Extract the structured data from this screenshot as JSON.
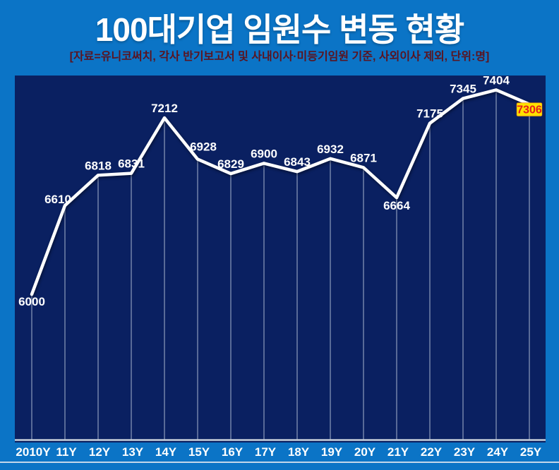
{
  "header": {
    "title": "100대기업 임원수 변동 현황",
    "subtitle": "[자료=유니코써치, 각사 반기보고서 및 사내이사·미등기임원 기준, 사외이사 제외, 단위:명]"
  },
  "colors": {
    "page_background": "#0b74c6",
    "panel_background": "#0a2061",
    "title_color": "#ffffff",
    "subtitle_color": "#5a1420",
    "line_color": "#ffffff",
    "value_label_color": "#ffffff",
    "dropline_color": "rgba(208,217,233,0.5)",
    "axis_line_color": "#c8cfdb",
    "highlight_bg": "#ffe100",
    "highlight_text": "#e3201b"
  },
  "chart_data": {
    "type": "line",
    "title": "100대기업 임원수 변동 현황",
    "subtitle": "[자료=유니코써치, 각사 반기보고서 및 사내이사·미등기임원 기준, 사외이사 제외, 단위:명]",
    "unit": "명",
    "categories": [
      "2010Y",
      "11Y",
      "12Y",
      "13Y",
      "14Y",
      "15Y",
      "16Y",
      "17Y",
      "18Y",
      "19Y",
      "20Y",
      "21Y",
      "22Y",
      "23Y",
      "24Y",
      "25Y"
    ],
    "values": [
      6000,
      6610,
      6818,
      6831,
      7212,
      6928,
      6829,
      6900,
      6843,
      6932,
      6871,
      6664,
      7175,
      7345,
      7404,
      7306
    ],
    "xlabel": "",
    "ylabel": "",
    "ylim": [
      4992,
      7503
    ],
    "grid": "vertical dropline from each data point to baseline",
    "legend": false,
    "labels_below_points": [
      "2010Y",
      "21Y"
    ],
    "highlight": {
      "index": 15,
      "category": "25Y",
      "value": 7306
    }
  }
}
